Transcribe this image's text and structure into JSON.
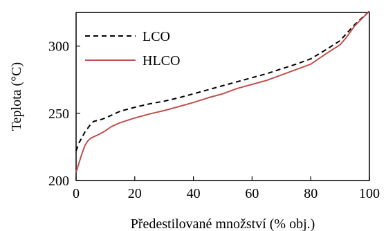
{
  "chart_data": {
    "type": "line",
    "xlabel": "Předestilované množství (% obj.)",
    "ylabel": "Teplota (°C)",
    "xlim": [
      0,
      100
    ],
    "ylim": [
      200,
      325
    ],
    "xticks": [
      0,
      20,
      40,
      60,
      80,
      100
    ],
    "yticks": [
      200,
      250,
      300
    ],
    "grid": false,
    "legend_position": "top-left",
    "series": [
      {
        "name": "LCO",
        "style": "dashed",
        "color": "#000000",
        "x": [
          0,
          1,
          2,
          3,
          4,
          5,
          6,
          8,
          10,
          12,
          15,
          20,
          25,
          30,
          35,
          40,
          45,
          50,
          55,
          60,
          65,
          70,
          75,
          80,
          85,
          90,
          95,
          100
        ],
        "y": [
          222,
          228,
          232,
          236,
          239,
          242,
          244,
          245,
          246.5,
          248.5,
          251.5,
          254.5,
          257,
          259,
          261.5,
          264.5,
          267.5,
          270.5,
          273.5,
          276.5,
          279.5,
          283,
          286.5,
          290.5,
          297,
          304,
          316,
          326
        ]
      },
      {
        "name": "HLCO",
        "style": "solid",
        "color": "#c0504d",
        "x": [
          0,
          1,
          2,
          3,
          4,
          5,
          6,
          8,
          10,
          12,
          15,
          20,
          25,
          30,
          35,
          40,
          45,
          50,
          55,
          60,
          65,
          70,
          75,
          80,
          85,
          90,
          92,
          95,
          100
        ],
        "y": [
          206,
          213,
          220,
          226,
          229.5,
          231.5,
          232.5,
          234.5,
          237,
          240,
          243,
          246.5,
          249.5,
          252,
          255,
          258,
          261.5,
          264.5,
          268.5,
          271.5,
          274.5,
          278.5,
          282.5,
          286.5,
          294,
          301,
          306,
          315,
          326
        ]
      }
    ]
  }
}
